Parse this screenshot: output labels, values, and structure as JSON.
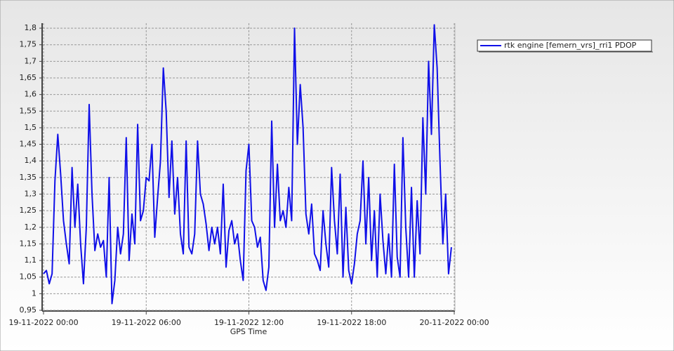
{
  "chart_data": {
    "type": "line",
    "x_label": "GPS Time",
    "xlim": [
      "19-11-2022 00:00",
      "20-11-2022 00:00"
    ],
    "xticks": [
      "19-11-2022 00:00",
      "19-11-2022 06:00",
      "19-11-2022 12:00",
      "19-11-2022 18:00",
      "20-11-2022 00:00"
    ],
    "ylim": [
      0.95,
      1.815
    ],
    "yticks": [
      {
        "value": 0.95,
        "label": "0,95"
      },
      1,
      {
        "value": 1.05,
        "label": "1,05"
      },
      {
        "value": 1.1,
        "label": "1,1"
      },
      {
        "value": 1.15,
        "label": "1,15"
      },
      {
        "value": 1.2,
        "label": "1,2"
      },
      {
        "value": 1.25,
        "label": "1,25"
      },
      {
        "value": 1.3,
        "label": "1,3"
      },
      {
        "value": 1.35,
        "label": "1,35"
      },
      {
        "value": 1.4,
        "label": "1,4"
      },
      {
        "value": 1.45,
        "label": "1,45"
      },
      {
        "value": 1.5,
        "label": "1,5"
      },
      {
        "value": 1.55,
        "label": "1,55"
      },
      {
        "value": 1.6,
        "label": "1,6"
      },
      {
        "value": 1.65,
        "label": "1,65"
      },
      {
        "value": 1.7,
        "label": "1,7"
      },
      {
        "value": 1.75,
        "label": "1,75"
      },
      {
        "value": 1.8,
        "label": "1,8"
      }
    ],
    "grid": true,
    "legend": "top-right",
    "x": [
      "19-11-2022 00:00",
      "19-11-2022 00:10",
      "19-11-2022 00:20",
      "19-11-2022 00:30",
      "19-11-2022 00:40",
      "19-11-2022 00:50",
      "19-11-2022 01:00",
      "19-11-2022 01:10",
      "19-11-2022 01:20",
      "19-11-2022 01:30",
      "19-11-2022 01:40",
      "19-11-2022 01:50",
      "19-11-2022 02:00",
      "19-11-2022 02:10",
      "19-11-2022 02:20",
      "19-11-2022 02:30",
      "19-11-2022 02:40",
      "19-11-2022 02:50",
      "19-11-2022 03:00",
      "19-11-2022 03:10",
      "19-11-2022 03:20",
      "19-11-2022 03:30",
      "19-11-2022 03:40",
      "19-11-2022 03:50",
      "19-11-2022 04:00",
      "19-11-2022 04:10",
      "19-11-2022 04:20",
      "19-11-2022 04:30",
      "19-11-2022 04:40",
      "19-11-2022 04:50",
      "19-11-2022 05:00",
      "19-11-2022 05:10",
      "19-11-2022 05:20",
      "19-11-2022 05:30",
      "19-11-2022 05:40",
      "19-11-2022 05:50",
      "19-11-2022 06:00",
      "19-11-2022 06:10",
      "19-11-2022 06:20",
      "19-11-2022 06:30",
      "19-11-2022 06:40",
      "19-11-2022 06:50",
      "19-11-2022 07:00",
      "19-11-2022 07:10",
      "19-11-2022 07:20",
      "19-11-2022 07:30",
      "19-11-2022 07:40",
      "19-11-2022 07:50",
      "19-11-2022 08:00",
      "19-11-2022 08:10",
      "19-11-2022 08:20",
      "19-11-2022 08:30",
      "19-11-2022 08:40",
      "19-11-2022 08:50",
      "19-11-2022 09:00",
      "19-11-2022 09:10",
      "19-11-2022 09:20",
      "19-11-2022 09:30",
      "19-11-2022 09:40",
      "19-11-2022 09:50",
      "19-11-2022 10:00",
      "19-11-2022 10:10",
      "19-11-2022 10:20",
      "19-11-2022 10:30",
      "19-11-2022 10:40",
      "19-11-2022 10:50",
      "19-11-2022 11:00",
      "19-11-2022 11:10",
      "19-11-2022 11:20",
      "19-11-2022 11:30",
      "19-11-2022 11:40",
      "19-11-2022 11:50",
      "19-11-2022 12:00",
      "19-11-2022 12:10",
      "19-11-2022 12:20",
      "19-11-2022 12:30",
      "19-11-2022 12:40",
      "19-11-2022 12:50",
      "19-11-2022 13:00",
      "19-11-2022 13:10",
      "19-11-2022 13:20",
      "19-11-2022 13:30",
      "19-11-2022 13:40",
      "19-11-2022 13:50",
      "19-11-2022 14:00",
      "19-11-2022 14:10",
      "19-11-2022 14:20",
      "19-11-2022 14:30",
      "19-11-2022 14:40",
      "19-11-2022 14:50",
      "19-11-2022 15:00",
      "19-11-2022 15:10",
      "19-11-2022 15:20",
      "19-11-2022 15:30",
      "19-11-2022 15:40",
      "19-11-2022 15:50",
      "19-11-2022 16:00",
      "19-11-2022 16:10",
      "19-11-2022 16:20",
      "19-11-2022 16:30",
      "19-11-2022 16:40",
      "19-11-2022 16:50",
      "19-11-2022 17:00",
      "19-11-2022 17:10",
      "19-11-2022 17:20",
      "19-11-2022 17:30",
      "19-11-2022 17:40",
      "19-11-2022 17:50",
      "19-11-2022 18:00",
      "19-11-2022 18:10",
      "19-11-2022 18:20",
      "19-11-2022 18:30",
      "19-11-2022 18:40",
      "19-11-2022 18:50",
      "19-11-2022 19:00",
      "19-11-2022 19:10",
      "19-11-2022 19:20",
      "19-11-2022 19:30",
      "19-11-2022 19:40",
      "19-11-2022 19:50",
      "19-11-2022 20:00",
      "19-11-2022 20:10",
      "19-11-2022 20:20",
      "19-11-2022 20:30",
      "19-11-2022 20:40",
      "19-11-2022 20:50",
      "19-11-2022 21:00",
      "19-11-2022 21:10",
      "19-11-2022 21:20",
      "19-11-2022 21:30",
      "19-11-2022 21:40",
      "19-11-2022 21:50",
      "19-11-2022 22:00",
      "19-11-2022 22:10",
      "19-11-2022 22:20",
      "19-11-2022 22:30",
      "19-11-2022 22:40",
      "19-11-2022 22:50",
      "19-11-2022 23:00",
      "19-11-2022 23:10",
      "19-11-2022 23:20",
      "19-11-2022 23:30",
      "19-11-2022 23:40",
      "19-11-2022 23:50"
    ],
    "series": [
      {
        "name": "rtk engine [femern_vrs]_rri1 PDOP",
        "color": "#1010e8",
        "values": [
          1.06,
          1.07,
          1.03,
          1.06,
          1.34,
          1.48,
          1.36,
          1.22,
          1.15,
          1.09,
          1.38,
          1.2,
          1.33,
          1.15,
          1.03,
          1.2,
          1.57,
          1.3,
          1.13,
          1.18,
          1.14,
          1.16,
          1.05,
          1.35,
          0.97,
          1.04,
          1.2,
          1.12,
          1.18,
          1.47,
          1.1,
          1.24,
          1.15,
          1.51,
          1.22,
          1.25,
          1.35,
          1.34,
          1.45,
          1.17,
          1.29,
          1.4,
          1.68,
          1.55,
          1.29,
          1.46,
          1.24,
          1.35,
          1.18,
          1.12,
          1.46,
          1.14,
          1.12,
          1.18,
          1.46,
          1.3,
          1.27,
          1.21,
          1.13,
          1.2,
          1.15,
          1.2,
          1.12,
          1.33,
          1.08,
          1.19,
          1.22,
          1.15,
          1.18,
          1.1,
          1.04,
          1.37,
          1.45,
          1.22,
          1.2,
          1.14,
          1.17,
          1.04,
          1.01,
          1.08,
          1.52,
          1.2,
          1.39,
          1.22,
          1.25,
          1.2,
          1.32,
          1.22,
          1.8,
          1.45,
          1.63,
          1.5,
          1.24,
          1.18,
          1.27,
          1.12,
          1.1,
          1.07,
          1.25,
          1.15,
          1.08,
          1.38,
          1.22,
          1.12,
          1.36,
          1.05,
          1.26,
          1.07,
          1.03,
          1.09,
          1.18,
          1.22,
          1.4,
          1.15,
          1.35,
          1.1,
          1.25,
          1.05,
          1.3,
          1.16,
          1.06,
          1.18,
          1.05,
          1.39,
          1.11,
          1.05,
          1.47,
          1.2,
          1.05,
          1.32,
          1.05,
          1.28,
          1.12,
          1.53,
          1.3,
          1.7,
          1.48,
          1.81,
          1.68,
          1.4,
          1.15,
          1.3,
          1.06,
          1.14
        ]
      }
    ]
  }
}
